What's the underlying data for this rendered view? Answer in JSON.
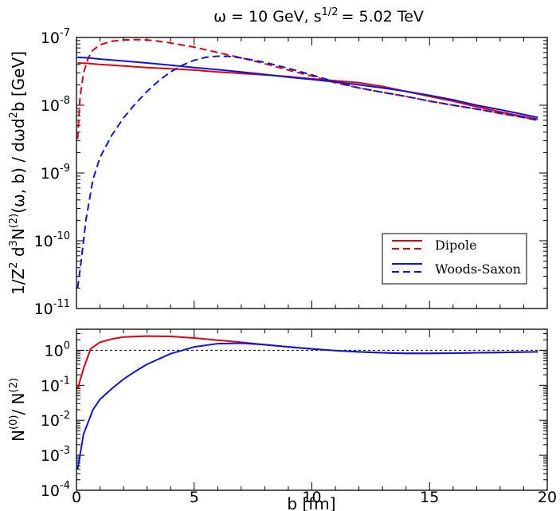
{
  "chart_data": [
    {
      "type": "line",
      "title": "ω = 10 GeV, s",
      "title_sup": "1/2",
      "title_tail": "= 5.02 TeV",
      "ylabel_parts": [
        "1/Z",
        "2",
        " d",
        "3",
        "N",
        "(2)",
        "(ω, b) / dωd",
        "2",
        "b [GeV]"
      ],
      "yscale": "log",
      "ylim": [
        1e-11,
        1e-07
      ],
      "xlim": [
        0,
        20
      ],
      "yticks": [
        {
          "base": "10",
          "exp": "-11",
          "value": 1e-11
        },
        {
          "base": "10",
          "exp": "-10",
          "value": 1e-10
        },
        {
          "base": "10",
          "exp": "-9",
          "value": 1e-09
        },
        {
          "base": "10",
          "exp": "-8",
          "value": 1e-08
        },
        {
          "base": "10",
          "exp": "-7",
          "value": 1e-07
        }
      ],
      "legend": {
        "position": "bottom-right",
        "entries": [
          {
            "label": "Dipole",
            "color": "#e8000b"
          },
          {
            "label": "Woods-Saxon",
            "color": "#0a14e6"
          }
        ]
      },
      "series": [
        {
          "color": "#e8000b",
          "style": "solid",
          "x": [
            0.05,
            0.5,
            1,
            2,
            3,
            4,
            5,
            6,
            7,
            8,
            9,
            10,
            11,
            12,
            13,
            14,
            15,
            16,
            17,
            18,
            19,
            19.6
          ],
          "y": [
            4.2e-08,
            4.15e-08,
            4e-08,
            3.8e-08,
            3.6e-08,
            3.45e-08,
            3.3e-08,
            3.1e-08,
            2.95e-08,
            2.8e-08,
            2.65e-08,
            2.45e-08,
            2.3e-08,
            2.15e-08,
            1.9e-08,
            1.6e-08,
            1.35e-08,
            1.15e-08,
            9.5e-09,
            8e-09,
            6.8e-09,
            6.2e-09
          ]
        },
        {
          "color": "#e8000b",
          "style": "dashed",
          "x": [
            0.05,
            0.15,
            0.3,
            0.5,
            0.7,
            1,
            1.5,
            2,
            2.5,
            3,
            3.5,
            4,
            5,
            6,
            7,
            8,
            9,
            10,
            11,
            12,
            13,
            14,
            15,
            16,
            17,
            18,
            19,
            19.6
          ],
          "y": [
            3.2e-09,
            1.3e-08,
            3e-08,
            5e-08,
            6.5e-08,
            7.8e-08,
            8.8e-08,
            9.2e-08,
            9.3e-08,
            9.2e-08,
            8.8e-08,
            8.3e-08,
            7.2e-08,
            6e-08,
            5e-08,
            4.1e-08,
            3.3e-08,
            2.7e-08,
            2.15e-08,
            1.8e-08,
            1.55e-08,
            1.35e-08,
            1.15e-08,
            1e-08,
            8.8e-09,
            7.6e-09,
            6.6e-09,
            6e-09
          ]
        },
        {
          "color": "#0a14e6",
          "style": "solid",
          "x": [
            0.05,
            0.5,
            1,
            2,
            3,
            4,
            5,
            6,
            7,
            8,
            9,
            10,
            11,
            12,
            13,
            14,
            15,
            16,
            17,
            18,
            19,
            19.6
          ],
          "y": [
            5.1e-08,
            5e-08,
            4.8e-08,
            4.5e-08,
            4.2e-08,
            3.9e-08,
            3.6e-08,
            3.35e-08,
            3.1e-08,
            2.85e-08,
            2.6e-08,
            2.4e-08,
            2.2e-08,
            2e-08,
            1.8e-08,
            1.6e-08,
            1.4e-08,
            1.2e-08,
            1e-08,
            8.6e-09,
            7.3e-09,
            6.6e-09
          ]
        },
        {
          "color": "#0a14e6",
          "style": "dashed",
          "x": [
            0.05,
            0.2,
            0.4,
            0.7,
            1,
            1.5,
            2,
            2.5,
            3,
            3.5,
            4,
            4.5,
            5,
            5.5,
            6,
            6.5,
            7,
            8,
            9,
            10,
            11,
            12,
            13,
            14,
            15,
            16,
            17,
            18,
            19,
            19.6
          ],
          "y": [
            2e-11,
            5e-11,
            2e-10,
            8e-10,
            1.7e-09,
            3.6e-09,
            6.5e-09,
            1.05e-08,
            1.6e-08,
            2.3e-08,
            3.1e-08,
            3.9e-08,
            4.6e-08,
            5.1e-08,
            5.3e-08,
            5.25e-08,
            5e-08,
            4.3e-08,
            3.5e-08,
            2.8e-08,
            2.2e-08,
            1.8e-08,
            1.55e-08,
            1.35e-08,
            1.15e-08,
            1e-08,
            8.8e-09,
            7.6e-09,
            6.6e-09,
            6e-09
          ]
        }
      ]
    },
    {
      "type": "line",
      "ylabel_parts": [
        "N",
        "(0)",
        "/  N",
        "(2)"
      ],
      "xlabel": "b [fm]",
      "yscale": "log",
      "ylim": [
        0.0001,
        4
      ],
      "xlim": [
        0,
        20
      ],
      "xticks": [
        "0",
        "5",
        "10",
        "15",
        "20"
      ],
      "xtick_values": [
        0,
        5,
        10,
        15,
        20
      ],
      "yticks": [
        {
          "base": "10",
          "exp": "-4",
          "value": 0.0001
        },
        {
          "base": "10",
          "exp": "-3",
          "value": 0.001
        },
        {
          "base": "10",
          "exp": "-2",
          "value": 0.01
        },
        {
          "base": "10",
          "exp": "-1",
          "value": 0.1
        },
        {
          "base": "10",
          "exp": "0",
          "value": 1
        }
      ],
      "reference_line": 1,
      "series": [
        {
          "color": "#e8000b",
          "style": "solid",
          "x": [
            0.05,
            0.3,
            0.6,
            1,
            1.5,
            2,
            3,
            4,
            5,
            6,
            7,
            8,
            9,
            10,
            11,
            12,
            13,
            14,
            15,
            16,
            17,
            18,
            19,
            19.6
          ],
          "y": [
            0.08,
            0.3,
            1.1,
            1.7,
            2.1,
            2.4,
            2.55,
            2.5,
            2.25,
            1.95,
            1.7,
            1.45,
            1.25,
            1.1,
            0.98,
            0.9,
            0.85,
            0.82,
            0.82,
            0.83,
            0.85,
            0.87,
            0.89,
            0.9
          ]
        },
        {
          "color": "#0a14e6",
          "style": "solid",
          "x": [
            0.05,
            0.3,
            0.7,
            1,
            1.5,
            2,
            2.5,
            3,
            4,
            5,
            6,
            7,
            8,
            9,
            10,
            11,
            12,
            13,
            14,
            15,
            16,
            17,
            18,
            19,
            19.6
          ],
          "y": [
            0.0004,
            0.004,
            0.02,
            0.04,
            0.08,
            0.15,
            0.25,
            0.4,
            0.8,
            1.25,
            1.55,
            1.6,
            1.45,
            1.25,
            1.1,
            0.98,
            0.9,
            0.85,
            0.82,
            0.82,
            0.83,
            0.85,
            0.87,
            0.89,
            0.9
          ]
        }
      ]
    }
  ]
}
